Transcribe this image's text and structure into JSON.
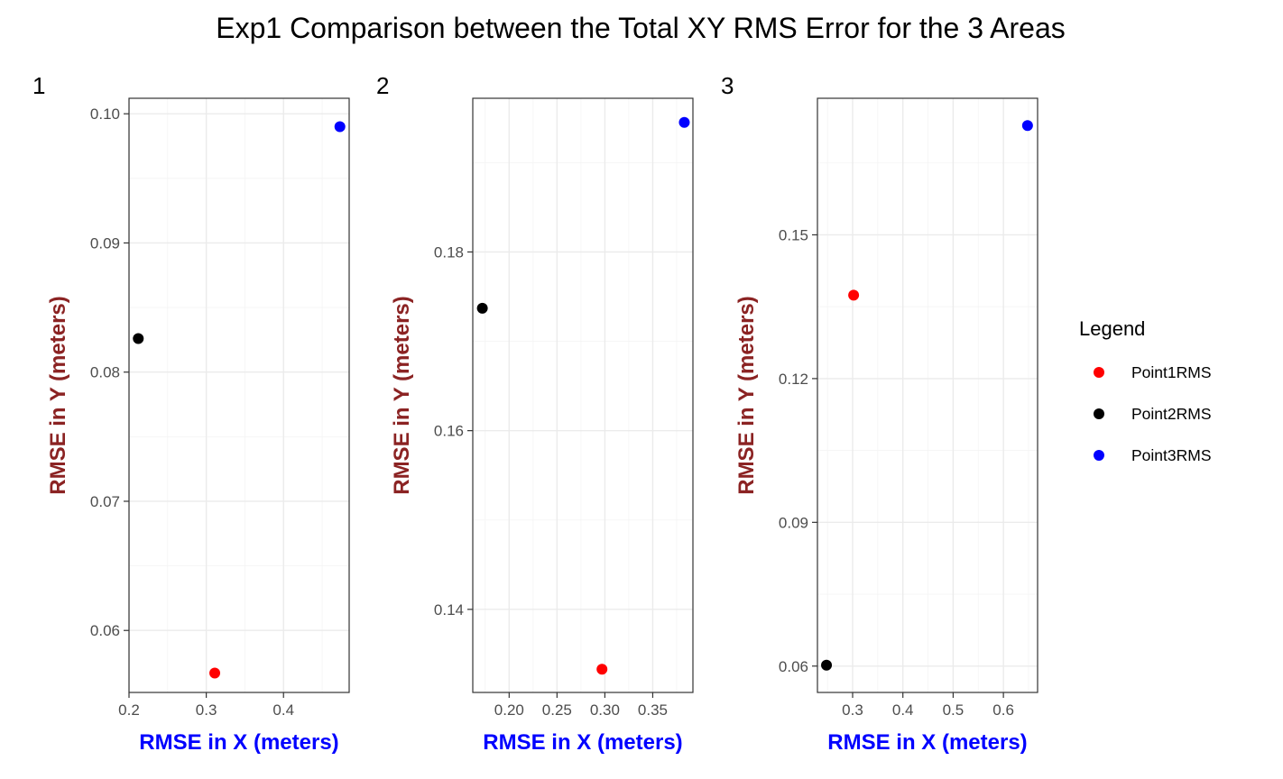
{
  "title": "Exp1 Comparison between the Total XY RMS Error for the 3 Areas",
  "legend": {
    "title": "Legend",
    "items": [
      {
        "label": "Point1RMS",
        "color": "#ff0000"
      },
      {
        "label": "Point2RMS",
        "color": "#000000"
      },
      {
        "label": "Point3RMS",
        "color": "#0000ff"
      }
    ]
  },
  "chart_data": [
    {
      "type": "scatter",
      "panel_label": "1",
      "xlabel": "RMSE in X (meters)",
      "ylabel": "RMSE in Y (meters)",
      "xlim": [
        0.2,
        0.485
      ],
      "ylim": [
        0.0552,
        0.1012
      ],
      "xticks": [
        0.2,
        0.3,
        0.4
      ],
      "xtick_labels": [
        "0.2",
        "0.3",
        "0.4"
      ],
      "yticks": [
        0.06,
        0.07,
        0.08,
        0.09,
        0.1
      ],
      "ytick_labels": [
        "0.06",
        "0.07",
        "0.08",
        "0.09",
        "0.10"
      ],
      "grid": true,
      "series": [
        {
          "name": "Point1RMS",
          "color": "#ff0000",
          "x": [
            0.311
          ],
          "y": [
            0.0567
          ]
        },
        {
          "name": "Point2RMS",
          "color": "#000000",
          "x": [
            0.212
          ],
          "y": [
            0.0826
          ]
        },
        {
          "name": "Point3RMS",
          "color": "#0000ff",
          "x": [
            0.473
          ],
          "y": [
            0.099
          ]
        }
      ]
    },
    {
      "type": "scatter",
      "panel_label": "2",
      "xlabel": "RMSE in X (meters)",
      "ylabel": "RMSE in Y (meters)",
      "xlim": [
        0.162,
        0.392
      ],
      "ylim": [
        0.1307,
        0.1972
      ],
      "xticks": [
        0.2,
        0.25,
        0.3,
        0.35
      ],
      "xtick_labels": [
        "0.20",
        "0.25",
        "0.30",
        "0.35"
      ],
      "yticks": [
        0.14,
        0.16,
        0.18
      ],
      "ytick_labels": [
        "0.14",
        "0.16",
        "0.18"
      ],
      "grid": true,
      "series": [
        {
          "name": "Point1RMS",
          "color": "#ff0000",
          "x": [
            0.297
          ],
          "y": [
            0.1333
          ]
        },
        {
          "name": "Point2RMS",
          "color": "#000000",
          "x": [
            0.172
          ],
          "y": [
            0.1737
          ]
        },
        {
          "name": "Point3RMS",
          "color": "#0000ff",
          "x": [
            0.383
          ],
          "y": [
            0.1945
          ]
        }
      ]
    },
    {
      "type": "scatter",
      "panel_label": "3",
      "xlabel": "RMSE in X (meters)",
      "ylabel": "RMSE in Y (meters)",
      "xlim": [
        0.23,
        0.668
      ],
      "ylim": [
        0.0545,
        0.1785
      ],
      "xticks": [
        0.3,
        0.4,
        0.5,
        0.6
      ],
      "xtick_labels": [
        "0.3",
        "0.4",
        "0.5",
        "0.6"
      ],
      "yticks": [
        0.06,
        0.09,
        0.12,
        0.15
      ],
      "ytick_labels": [
        "0.06",
        "0.09",
        "0.12",
        "0.15"
      ],
      "grid": true,
      "series": [
        {
          "name": "Point1RMS",
          "color": "#ff0000",
          "x": [
            0.302
          ],
          "y": [
            0.1374
          ]
        },
        {
          "name": "Point2RMS",
          "color": "#000000",
          "x": [
            0.248
          ],
          "y": [
            0.0602
          ]
        },
        {
          "name": "Point3RMS",
          "color": "#0000ff",
          "x": [
            0.648
          ],
          "y": [
            0.1728
          ]
        }
      ]
    }
  ]
}
